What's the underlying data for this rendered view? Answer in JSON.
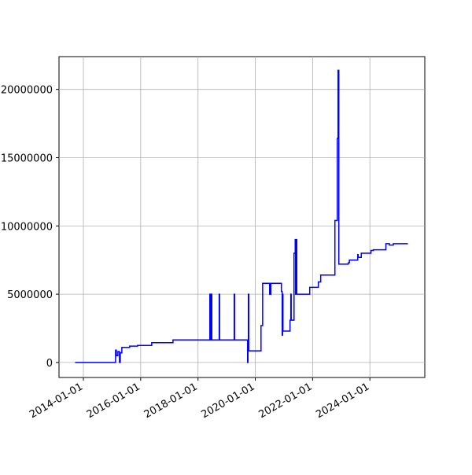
{
  "chart_data": {
    "type": "line",
    "drawstyle": "steps-post",
    "grid": true,
    "x": [
      "2013-09-17",
      "2015-02-15",
      "2015-02-25",
      "2015-03-17",
      "2015-04-06",
      "2015-04-16",
      "2015-05-06",
      "2015-08-14",
      "2015-11-22",
      "2016-05-21",
      "2017-02-16",
      "2018-06-01",
      "2018-06-06",
      "2018-06-11",
      "2018-06-16",
      "2018-06-21",
      "2018-06-26",
      "2018-09-28",
      "2018-10-03",
      "2019-04-07",
      "2019-04-12",
      "2019-09-25",
      "2019-09-30",
      "2019-10-05",
      "2019-10-10",
      "2020-03-14",
      "2020-04-04",
      "2020-07-02",
      "2020-07-17",
      "2020-11-29",
      "2020-12-09",
      "2020-12-14",
      "2020-12-19",
      "2021-03-19",
      "2021-03-29",
      "2021-04-03",
      "2021-05-09",
      "2021-05-24",
      "2021-05-29",
      "2021-06-03",
      "2021-06-13",
      "2021-11-25",
      "2022-03-15",
      "2022-04-14",
      "2022-10-12",
      "2022-11-11",
      "2022-11-21",
      "2022-12-01",
      "2023-03-31",
      "2023-04-15",
      "2023-07-30",
      "2023-08-04",
      "2023-09-13",
      "2024-01-15",
      "2024-02-14",
      "2024-07-23",
      "2024-09-06",
      "2024-10-26",
      "2025-04-30"
    ],
    "series": [
      {
        "color": "#0000ff",
        "values": [
          0,
          900000,
          500000,
          800000,
          0,
          700000,
          1100000,
          1200000,
          1250000,
          1450000,
          1650000,
          5000000,
          1650000,
          5000000,
          1650000,
          5000000,
          1650000,
          5000000,
          1650000,
          5000000,
          1650000,
          0,
          1650000,
          5000000,
          850000,
          2700000,
          5800000,
          5000000,
          5800000,
          5200000,
          2000000,
          5000000,
          2300000,
          3100000,
          5000000,
          3100000,
          8000000,
          9000000,
          5000000,
          9000000,
          5000000,
          5500000,
          5900000,
          6400000,
          10400000,
          16400000,
          21400000,
          7200000,
          7300000,
          7500000,
          7900000,
          7700000,
          8000000,
          8200000,
          8250000,
          8700000,
          8600000,
          8700000,
          8700000
        ]
      }
    ],
    "xlim": [
      "2013-02-24",
      "2025-12-01"
    ],
    "xticks": [
      "2014-01-01",
      "2016-01-01",
      "2018-01-01",
      "2020-01-01",
      "2022-01-01",
      "2024-01-01"
    ],
    "ylim": [
      -1100000,
      22400000
    ],
    "yticks": [
      0,
      5000000,
      10000000,
      15000000,
      20000000
    ]
  }
}
